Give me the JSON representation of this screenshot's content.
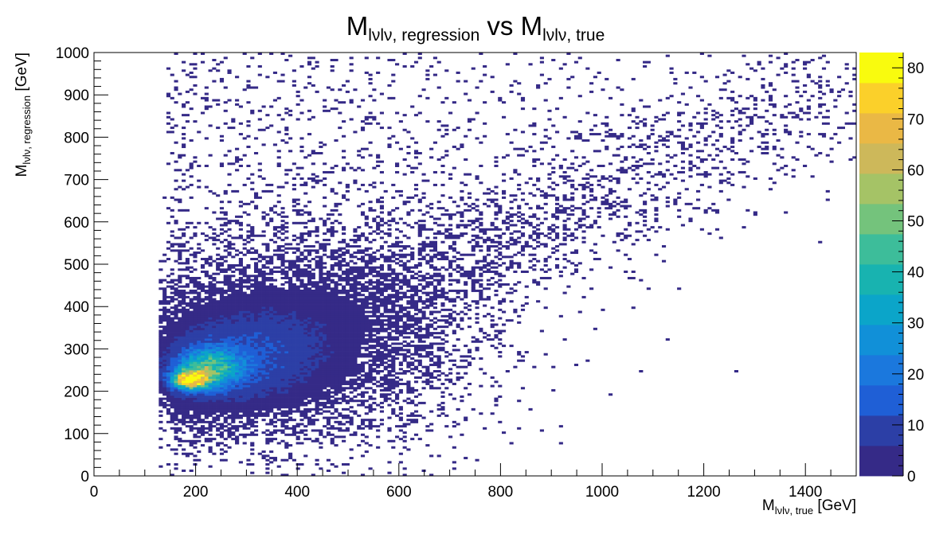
{
  "chart_data": {
    "type": "heatmap",
    "title": {
      "main": "M",
      "main_sub": "lνlν, regression",
      "vs": " vs M",
      "vs_sub": "lνlν, true"
    },
    "xlabel": {
      "main": "M",
      "sub": "lνlν, true",
      "unit": " [GeV]"
    },
    "ylabel": {
      "main": "M",
      "sub": "lνlν, regression",
      "unit": " [GeV]"
    },
    "xlim": [
      0,
      1500
    ],
    "ylim": [
      0,
      1000
    ],
    "x_ticks": [
      "0",
      "200",
      "400",
      "600",
      "800",
      "1000",
      "1200",
      "1400"
    ],
    "y_ticks": [
      "0",
      "100",
      "200",
      "300",
      "400",
      "500",
      "600",
      "700",
      "800",
      "900",
      "1000"
    ],
    "colorbar_ticks": [
      "0",
      "10",
      "20",
      "30",
      "40",
      "50",
      "60",
      "70",
      "80"
    ],
    "z_range": [
      0,
      83
    ],
    "bin_width": [
      7.5,
      5.0
    ],
    "peak": {
      "x": 190,
      "y": 228,
      "count": 83
    },
    "palette": [
      "#352a87",
      "#2c3fa6",
      "#1f5fd6",
      "#1b78dd",
      "#1190d8",
      "#0ba5c9",
      "#18b3b0",
      "#3dbd9a",
      "#74c37c",
      "#a5c366",
      "#cdb85a",
      "#eab845",
      "#fbd02a",
      "#f9fb0e"
    ],
    "cores": [
      {
        "x": 190,
        "y": 228,
        "sx": 22,
        "sy": 14,
        "amp": 78
      },
      {
        "x": 225,
        "y": 255,
        "sx": 42,
        "sy": 32,
        "amp": 38
      },
      {
        "x": 300,
        "y": 280,
        "sx": 95,
        "sy": 70,
        "amp": 9
      },
      {
        "x": 400,
        "y": 330,
        "sx": 180,
        "sy": 130,
        "amp": 2.5
      }
    ]
  }
}
